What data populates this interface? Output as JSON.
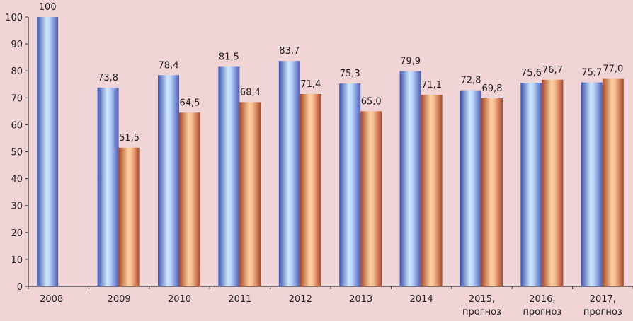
{
  "chart_data": {
    "type": "bar",
    "title": "",
    "xlabel": "",
    "ylabel": "",
    "ylim": [
      0,
      100
    ],
    "yticks": [
      0,
      10,
      20,
      30,
      40,
      50,
      60,
      70,
      80,
      90,
      100
    ],
    "grid": false,
    "categories": [
      [
        "2008"
      ],
      [
        "2009"
      ],
      [
        "2010"
      ],
      [
        "2011"
      ],
      [
        "2012"
      ],
      [
        "2013"
      ],
      [
        "2014"
      ],
      [
        "2015,",
        "прогноз"
      ],
      [
        "2016,",
        "прогноз"
      ],
      [
        "2017,",
        "прогноз"
      ]
    ],
    "series": [
      {
        "name": "series-1",
        "color": "#5a6fc4",
        "values": [
          100,
          73.8,
          78.4,
          81.5,
          83.7,
          75.3,
          79.9,
          72.8,
          75.6,
          75.7
        ],
        "labels": [
          "100",
          "73,8",
          "78,4",
          "81,5",
          "83,7",
          "75,3",
          "79,9",
          "72,8",
          "75,6",
          "75,7"
        ]
      },
      {
        "name": "series-2",
        "color": "#c8683a",
        "values": [
          null,
          51.5,
          64.5,
          68.4,
          71.4,
          65.0,
          71.1,
          69.8,
          76.7,
          77.0
        ],
        "labels": [
          null,
          "51,5",
          "64,5",
          "68,4",
          "71,4",
          "65,0",
          "71,1",
          "69,8",
          "76,7",
          "77,0"
        ]
      }
    ]
  }
}
